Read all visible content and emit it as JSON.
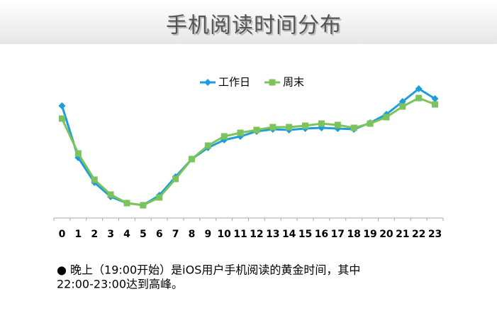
{
  "chart_data": {
    "type": "line",
    "title": "手机阅读时间分布",
    "categories": [
      "0",
      "1",
      "2",
      "3",
      "4",
      "5",
      "6",
      "7",
      "8",
      "9",
      "10",
      "11",
      "12",
      "13",
      "14",
      "15",
      "16",
      "17",
      "18",
      "19",
      "20",
      "21",
      "22",
      "23"
    ],
    "series": [
      {
        "name": "工作日",
        "color": "#1e9ddb",
        "marker": "diamond",
        "values": [
          79,
          42.5,
          25,
          15,
          10.5,
          9,
          16,
          29,
          41.5,
          49.5,
          55,
          57.5,
          61,
          62.5,
          62,
          63,
          63.5,
          63,
          62.5,
          67,
          73,
          82,
          91,
          84
        ]
      },
      {
        "name": "周末",
        "color": "#7cc35b",
        "marker": "square",
        "values": [
          70,
          45.5,
          27,
          16.5,
          10.5,
          9,
          14.5,
          27.5,
          41.5,
          51,
          57.5,
          60,
          62,
          64,
          64,
          65,
          66.5,
          65.5,
          63.5,
          66.5,
          71,
          78.5,
          84.5,
          80
        ]
      }
    ],
    "ylim": [
      0,
      100
    ],
    "legend": "top",
    "note": [
      "● 晚上（19:00开始）是iOS用户手机阅读的黄金时间，其中",
      "22:00-23:00达到高峰。"
    ]
  }
}
